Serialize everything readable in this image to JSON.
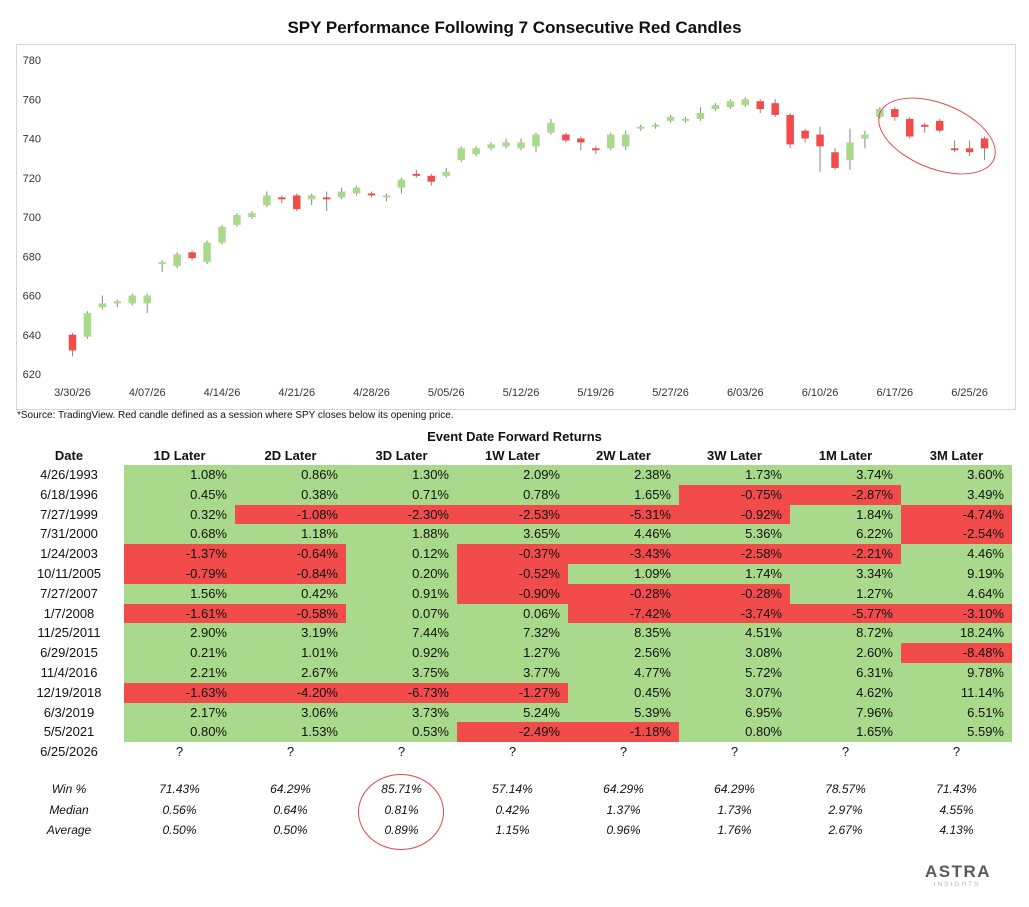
{
  "title": "SPY Performance Following 7 Consecutive Red Candles",
  "source_note": "*Source: TradingView. Red candle defined as a session where SPY closes below its opening price.",
  "table_title": "Event Date Forward Returns",
  "logo": {
    "main": "ASTRA",
    "sub": "INSIGHTS"
  },
  "colors": {
    "up": "#a9d98a",
    "down": "#f24b4b",
    "annotation": "#d94b4b"
  },
  "chart_data": {
    "type": "candlestick",
    "ylim": [
      620,
      780
    ],
    "yticks": [
      620,
      640,
      660,
      680,
      700,
      720,
      740,
      760,
      780
    ],
    "xtick_labels": [
      "3/30/26",
      "4/07/26",
      "4/14/26",
      "4/21/26",
      "4/28/26",
      "5/05/26",
      "5/12/26",
      "5/19/26",
      "5/27/26",
      "6/03/26",
      "6/10/26",
      "6/17/26",
      "6/25/26"
    ],
    "xtick_index": [
      0,
      5,
      10,
      15,
      20,
      25,
      30,
      35,
      40,
      45,
      50,
      55,
      60
    ],
    "grid": "off",
    "candles": [
      {
        "o": 640,
        "c": 632,
        "h": 641,
        "l": 629
      },
      {
        "o": 639,
        "c": 651,
        "h": 652,
        "l": 638
      },
      {
        "o": 654,
        "c": 656,
        "h": 660,
        "l": 653
      },
      {
        "o": 656,
        "c": 657,
        "h": 658,
        "l": 654
      },
      {
        "o": 656,
        "c": 660,
        "h": 661,
        "l": 655
      },
      {
        "o": 656,
        "c": 660,
        "h": 661,
        "l": 651
      },
      {
        "o": 676,
        "c": 677,
        "h": 678,
        "l": 672
      },
      {
        "o": 675,
        "c": 681,
        "h": 682,
        "l": 674
      },
      {
        "o": 682,
        "c": 679,
        "h": 683,
        "l": 678
      },
      {
        "o": 677,
        "c": 687,
        "h": 688,
        "l": 676
      },
      {
        "o": 687,
        "c": 695,
        "h": 696,
        "l": 686
      },
      {
        "o": 696,
        "c": 701,
        "h": 702,
        "l": 695
      },
      {
        "o": 700,
        "c": 702,
        "h": 703,
        "l": 699
      },
      {
        "o": 706,
        "c": 711,
        "h": 713,
        "l": 705
      },
      {
        "o": 710,
        "c": 709,
        "h": 711,
        "l": 707
      },
      {
        "o": 711,
        "c": 704,
        "h": 712,
        "l": 703
      },
      {
        "o": 709,
        "c": 711,
        "h": 712,
        "l": 706
      },
      {
        "o": 710,
        "c": 709,
        "h": 713,
        "l": 703
      },
      {
        "o": 710,
        "c": 713,
        "h": 715,
        "l": 709
      },
      {
        "o": 712,
        "c": 715,
        "h": 716,
        "l": 711
      },
      {
        "o": 712,
        "c": 711,
        "h": 713,
        "l": 710
      },
      {
        "o": 710,
        "c": 711,
        "h": 712,
        "l": 708
      },
      {
        "o": 715,
        "c": 719,
        "h": 720,
        "l": 712
      },
      {
        "o": 722,
        "c": 721,
        "h": 724,
        "l": 720
      },
      {
        "o": 721,
        "c": 718,
        "h": 722,
        "l": 716
      },
      {
        "o": 721,
        "c": 723,
        "h": 725,
        "l": 720
      },
      {
        "o": 729,
        "c": 735,
        "h": 736,
        "l": 728
      },
      {
        "o": 732,
        "c": 735,
        "h": 736,
        "l": 731
      },
      {
        "o": 735,
        "c": 737,
        "h": 738,
        "l": 734
      },
      {
        "o": 736,
        "c": 738,
        "h": 740,
        "l": 735
      },
      {
        "o": 735,
        "c": 738,
        "h": 740,
        "l": 734
      },
      {
        "o": 736,
        "c": 742,
        "h": 743,
        "l": 733
      },
      {
        "o": 743,
        "c": 748,
        "h": 750,
        "l": 742
      },
      {
        "o": 742,
        "c": 739,
        "h": 743,
        "l": 738
      },
      {
        "o": 740,
        "c": 738,
        "h": 741,
        "l": 734
      },
      {
        "o": 735,
        "c": 734,
        "h": 736,
        "l": 732
      },
      {
        "o": 735,
        "c": 742,
        "h": 743,
        "l": 734
      },
      {
        "o": 736,
        "c": 742,
        "h": 744,
        "l": 734
      },
      {
        "o": 745,
        "c": 746,
        "h": 747,
        "l": 744
      },
      {
        "o": 746,
        "c": 747,
        "h": 748,
        "l": 745
      },
      {
        "o": 749,
        "c": 751,
        "h": 752,
        "l": 748
      },
      {
        "o": 749,
        "c": 750,
        "h": 751,
        "l": 748
      },
      {
        "o": 750,
        "c": 753,
        "h": 756,
        "l": 749
      },
      {
        "o": 755,
        "c": 757,
        "h": 758,
        "l": 754
      },
      {
        "o": 756,
        "c": 759,
        "h": 760,
        "l": 755
      },
      {
        "o": 757,
        "c": 760,
        "h": 761,
        "l": 756
      },
      {
        "o": 759,
        "c": 755,
        "h": 760,
        "l": 753
      },
      {
        "o": 758,
        "c": 752,
        "h": 760,
        "l": 751
      },
      {
        "o": 752,
        "c": 737,
        "h": 753,
        "l": 735
      },
      {
        "o": 744,
        "c": 740,
        "h": 745,
        "l": 738
      },
      {
        "o": 742,
        "c": 736,
        "h": 746,
        "l": 723
      },
      {
        "o": 733,
        "c": 725,
        "h": 735,
        "l": 724
      },
      {
        "o": 729,
        "c": 738,
        "h": 745,
        "l": 724
      },
      {
        "o": 740,
        "c": 742,
        "h": 744,
        "l": 735
      },
      {
        "o": 751,
        "c": 755,
        "h": 756,
        "l": 750
      },
      {
        "o": 755,
        "c": 751,
        "h": 756,
        "l": 749
      },
      {
        "o": 750,
        "c": 741,
        "h": 751,
        "l": 740
      },
      {
        "o": 747,
        "c": 746,
        "h": 748,
        "l": 743
      },
      {
        "o": 749,
        "c": 744,
        "h": 750,
        "l": 743
      },
      {
        "o": 735,
        "c": 734,
        "h": 739,
        "l": 733
      },
      {
        "o": 735,
        "c": 733,
        "h": 739,
        "l": 731
      },
      {
        "o": 740,
        "c": 735,
        "h": 741,
        "l": 729
      }
    ]
  },
  "table": {
    "headers": [
      "Date",
      "1D Later",
      "2D Later",
      "3D Later",
      "1W Later",
      "2W Later",
      "3W Later",
      "1M Later",
      "3M Later"
    ],
    "rows": [
      {
        "date": "4/26/1993",
        "values": [
          "1.08%",
          "0.86%",
          "1.30%",
          "2.09%",
          "2.38%",
          "1.73%",
          "3.74%",
          "3.60%"
        ],
        "signs": [
          "pos",
          "pos",
          "pos",
          "pos",
          "pos",
          "pos",
          "pos",
          "pos"
        ]
      },
      {
        "date": "6/18/1996",
        "values": [
          "0.45%",
          "0.38%",
          "0.71%",
          "0.78%",
          "1.65%",
          "-0.75%",
          "-2.87%",
          "3.49%"
        ],
        "signs": [
          "pos",
          "pos",
          "pos",
          "pos",
          "pos",
          "neg",
          "neg",
          "pos"
        ]
      },
      {
        "date": "7/27/1999",
        "values": [
          "0.32%",
          "-1.08%",
          "-2.30%",
          "-2.53%",
          "-5.31%",
          "-0.92%",
          "1.84%",
          "-4.74%"
        ],
        "signs": [
          "pos",
          "neg",
          "neg",
          "neg",
          "neg",
          "neg",
          "pos",
          "neg"
        ]
      },
      {
        "date": "7/31/2000",
        "values": [
          "0.68%",
          "1.18%",
          "1.88%",
          "3.65%",
          "4.46%",
          "5.36%",
          "6.22%",
          "-2.54%"
        ],
        "signs": [
          "pos",
          "pos",
          "pos",
          "pos",
          "pos",
          "pos",
          "pos",
          "neg"
        ]
      },
      {
        "date": "1/24/2003",
        "values": [
          "-1.37%",
          "-0.64%",
          "0.12%",
          "-0.37%",
          "-3.43%",
          "-2.58%",
          "-2.21%",
          "4.46%"
        ],
        "signs": [
          "neg",
          "neg",
          "pos",
          "neg",
          "neg",
          "neg",
          "neg",
          "pos"
        ]
      },
      {
        "date": "10/11/2005",
        "values": [
          "-0.79%",
          "-0.84%",
          "0.20%",
          "-0.52%",
          "1.09%",
          "1.74%",
          "3.34%",
          "9.19%"
        ],
        "signs": [
          "neg",
          "neg",
          "pos",
          "neg",
          "pos",
          "pos",
          "pos",
          "pos"
        ]
      },
      {
        "date": "7/27/2007",
        "values": [
          "1.56%",
          "0.42%",
          "0.91%",
          "-0.90%",
          "-0.28%",
          "-0.28%",
          "1.27%",
          "4.64%"
        ],
        "signs": [
          "pos",
          "pos",
          "pos",
          "neg",
          "neg",
          "neg",
          "pos",
          "pos"
        ]
      },
      {
        "date": "1/7/2008",
        "values": [
          "-1.61%",
          "-0.58%",
          "0.07%",
          "0.06%",
          "-7.42%",
          "-3.74%",
          "-5.77%",
          "-3.10%"
        ],
        "signs": [
          "neg",
          "neg",
          "pos",
          "pos",
          "neg",
          "neg",
          "neg",
          "neg"
        ]
      },
      {
        "date": "11/25/2011",
        "values": [
          "2.90%",
          "3.19%",
          "7.44%",
          "7.32%",
          "8.35%",
          "4.51%",
          "8.72%",
          "18.24%"
        ],
        "signs": [
          "pos",
          "pos",
          "pos",
          "pos",
          "pos",
          "pos",
          "pos",
          "pos"
        ]
      },
      {
        "date": "6/29/2015",
        "values": [
          "0.21%",
          "1.01%",
          "0.92%",
          "1.27%",
          "2.56%",
          "3.08%",
          "2.60%",
          "-8.48%"
        ],
        "signs": [
          "pos",
          "pos",
          "pos",
          "pos",
          "pos",
          "pos",
          "pos",
          "neg"
        ]
      },
      {
        "date": "11/4/2016",
        "values": [
          "2.21%",
          "2.67%",
          "3.75%",
          "3.77%",
          "4.77%",
          "5.72%",
          "6.31%",
          "9.78%"
        ],
        "signs": [
          "pos",
          "pos",
          "pos",
          "pos",
          "pos",
          "pos",
          "pos",
          "pos"
        ]
      },
      {
        "date": "12/19/2018",
        "values": [
          "-1.63%",
          "-4.20%",
          "-6.73%",
          "-1.27%",
          "0.45%",
          "3.07%",
          "4.62%",
          "11.14%"
        ],
        "signs": [
          "neg",
          "neg",
          "neg",
          "neg",
          "pos",
          "pos",
          "pos",
          "pos"
        ]
      },
      {
        "date": "6/3/2019",
        "values": [
          "2.17%",
          "3.06%",
          "3.73%",
          "5.24%",
          "5.39%",
          "6.95%",
          "7.96%",
          "6.51%"
        ],
        "signs": [
          "pos",
          "pos",
          "pos",
          "pos",
          "pos",
          "pos",
          "pos",
          "pos"
        ]
      },
      {
        "date": "5/5/2021",
        "values": [
          "0.80%",
          "1.53%",
          "0.53%",
          "-2.49%",
          "-1.18%",
          "0.80%",
          "1.65%",
          "5.59%"
        ],
        "signs": [
          "pos",
          "pos",
          "pos",
          "neg",
          "neg",
          "pos",
          "pos",
          "pos"
        ]
      },
      {
        "date": "6/25/2026",
        "values": [
          "?",
          "?",
          "?",
          "?",
          "?",
          "?",
          "?",
          "?"
        ],
        "signs": [
          "none",
          "none",
          "none",
          "none",
          "none",
          "none",
          "none",
          "none"
        ]
      }
    ],
    "stats": [
      {
        "label": "Win %",
        "values": [
          "71.43%",
          "64.29%",
          "85.71%",
          "57.14%",
          "64.29%",
          "64.29%",
          "78.57%",
          "71.43%"
        ]
      },
      {
        "label": "Median",
        "values": [
          "0.56%",
          "0.64%",
          "0.81%",
          "0.42%",
          "1.37%",
          "1.73%",
          "2.97%",
          "4.55%"
        ]
      },
      {
        "label": "Average",
        "values": [
          "0.50%",
          "0.50%",
          "0.89%",
          "1.15%",
          "0.96%",
          "1.76%",
          "2.67%",
          "4.13%"
        ]
      }
    ]
  }
}
